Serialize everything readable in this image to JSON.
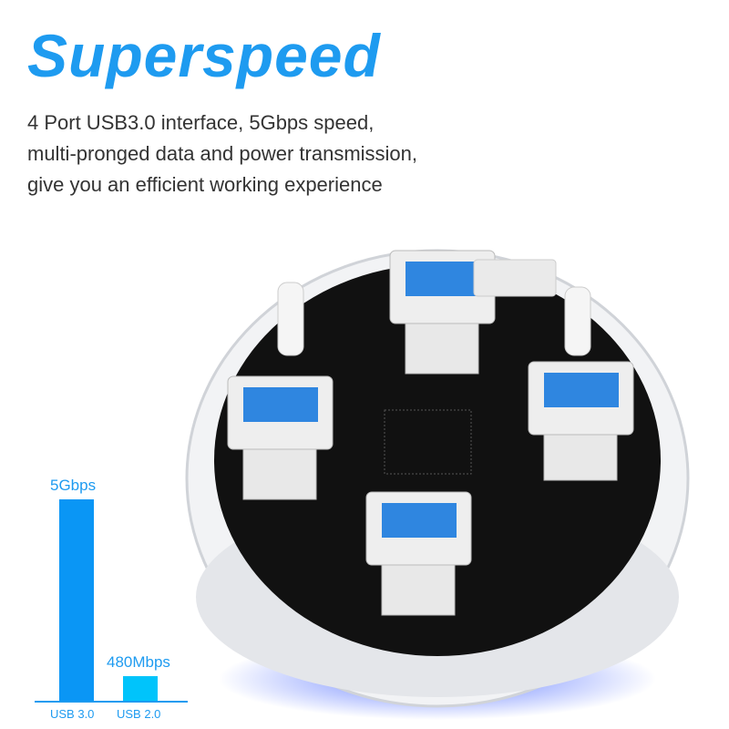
{
  "headline": "Superspeed",
  "description": [
    "4 Port USB3.0 interface, 5Gbps speed,",
    "multi-pronged data and power transmission,",
    "give you an efficient working experience"
  ],
  "colors": {
    "accent": "#1e9bf0",
    "usb3_bar": "#0a96f5",
    "usb2_bar": "#00c4fb",
    "usb_port_blue": "#2f86e0"
  },
  "chart_data": {
    "type": "bar",
    "categories": [
      "USB 3.0",
      "USB 2.0"
    ],
    "values": [
      5000,
      480
    ],
    "data_labels": [
      "5Gbps",
      "480Mbps"
    ],
    "unit": "Mbps",
    "grid": false
  }
}
